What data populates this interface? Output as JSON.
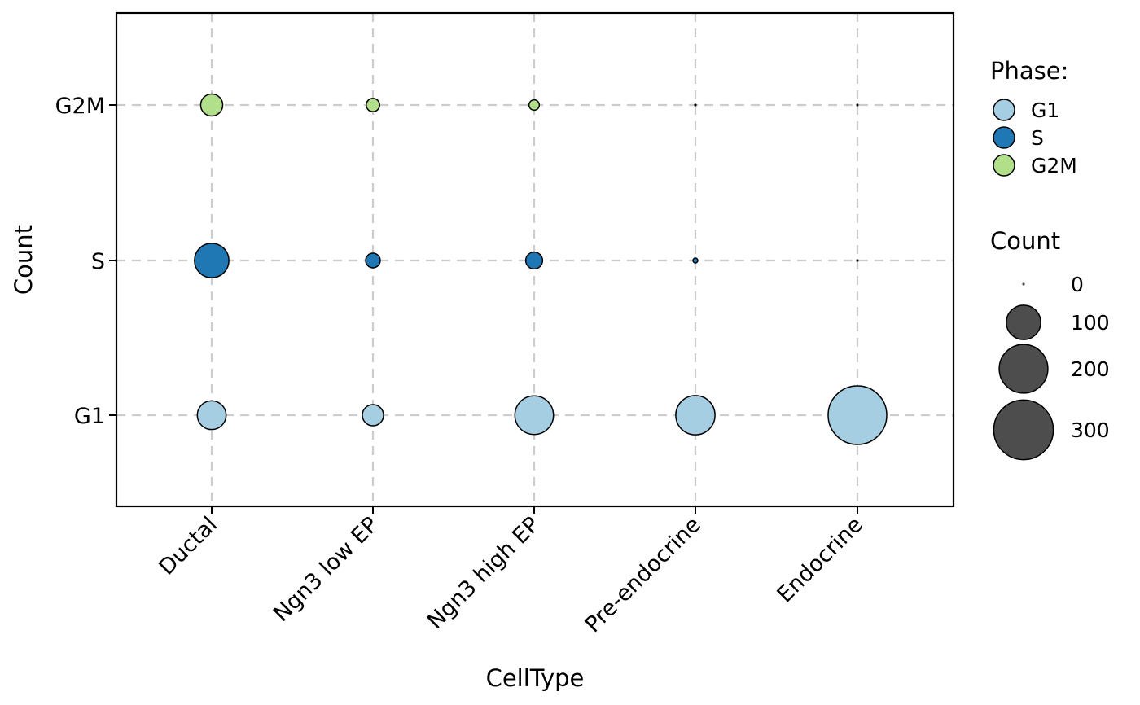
{
  "chart_data": {
    "type": "scatter",
    "title": "",
    "xlabel": "CellType",
    "ylabel": "Count",
    "categories": [
      "Ductal",
      "Ngn3 low EP",
      "Ngn3 high EP",
      "Pre-endocrine",
      "Endocrine"
    ],
    "y_categories": [
      "G1",
      "S",
      "G2M"
    ],
    "grid": true,
    "legend_position": "right",
    "phase_legend": {
      "title": "Phase:",
      "items": [
        {
          "name": "G1",
          "color": "#a6cee3"
        },
        {
          "name": "S",
          "color": "#1f78b4"
        },
        {
          "name": "G2M",
          "color": "#b2df8a"
        }
      ]
    },
    "size_legend": {
      "title": "Count",
      "values": [
        0,
        100,
        200,
        300
      ],
      "labels": [
        "0",
        "100",
        "200",
        "300"
      ]
    },
    "series": [
      {
        "name": "G1",
        "color": "#a6cee3",
        "values": [
          70,
          38,
          126,
          130,
          290
        ]
      },
      {
        "name": "S",
        "color": "#1f78b4",
        "values": [
          100,
          18,
          24,
          2,
          0
        ]
      },
      {
        "name": "G2M",
        "color": "#b2df8a",
        "values": [
          41,
          15,
          9,
          0,
          0
        ]
      }
    ]
  }
}
